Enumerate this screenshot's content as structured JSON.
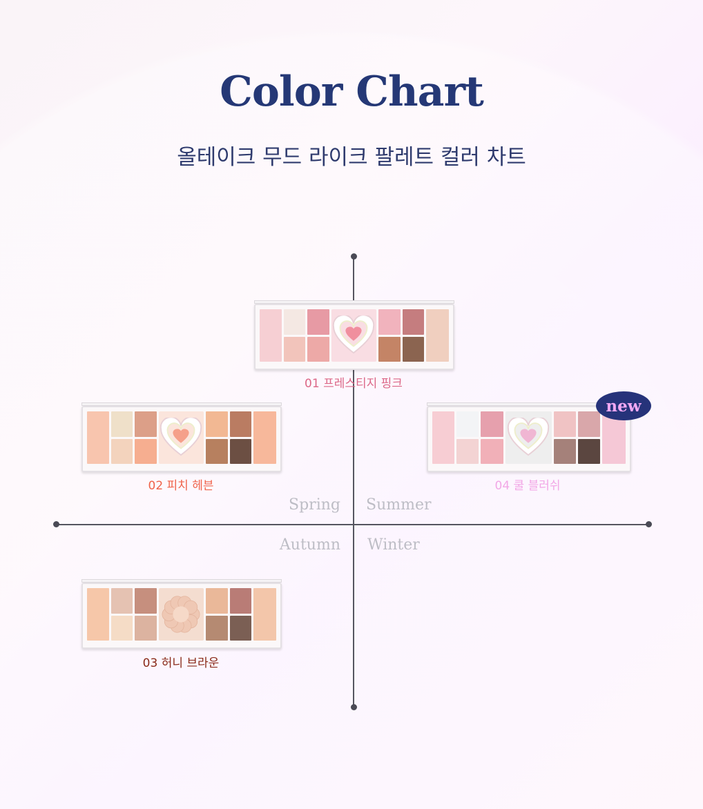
{
  "header": {
    "title": "Color Chart",
    "subtitle": "올테이크 무드 라이크 팔레트 컬러 차트"
  },
  "axes": {
    "top_left": "Spring",
    "top_right": "Summer",
    "bottom_left": "Autumn",
    "bottom_right": "Winter"
  },
  "badge": "new",
  "palettes": [
    {
      "label": "01 프레스티지 핑크",
      "label_color": "#dc6787",
      "motif": "heart-icon",
      "motif_bg": "#f9dde3",
      "motif_color": "#f08f9e",
      "swatches": [
        "#f6cfd3",
        "#f4e8e3",
        "#e79aa4",
        "#f2c4bb",
        "#eda9a7",
        "#f1b3bd",
        "#c57d7f",
        "#f0cfbf",
        "#c48466",
        "#8b6450"
      ]
    },
    {
      "label": "02 피치 헤븐",
      "label_color": "#f0634a",
      "motif": "heart-icon",
      "motif_bg": "#fbe5dc",
      "motif_color": "#f5a08a",
      "swatches": [
        "#f8c5ae",
        "#efe0c9",
        "#dc9f88",
        "#f3d3bd",
        "#f6ae90",
        "#f2b893",
        "#ba7c62",
        "#f7b89b",
        "#b7805f",
        "#6c4f43"
      ]
    },
    {
      "label": "03 허니 브라운",
      "label_color": "#8a2b19",
      "motif": "flower-icon",
      "motif_bg": "#f4ddd0",
      "motif_color": "#efc8b4",
      "swatches": [
        "#f6c7a9",
        "#e5c2b2",
        "#c68f7e",
        "#f5dcc6",
        "#dcb3a0",
        "#eab899",
        "#b97c76",
        "#f3c6aa",
        "#b58a72",
        "#7b5f54"
      ]
    },
    {
      "label": "04 쿨 블러쉬",
      "label_color": "#f2a7e6",
      "motif": "heart-icon",
      "motif_bg": "#eeeeee",
      "motif_color": "#f0b6d3",
      "swatches": [
        "#f7cdd3",
        "#f3f4f6",
        "#e6a0ad",
        "#f3d3d3",
        "#f1b0b8",
        "#f0c3c4",
        "#d9a7aa",
        "#f5c8d6",
        "#a5817a",
        "#5b4640"
      ]
    }
  ]
}
